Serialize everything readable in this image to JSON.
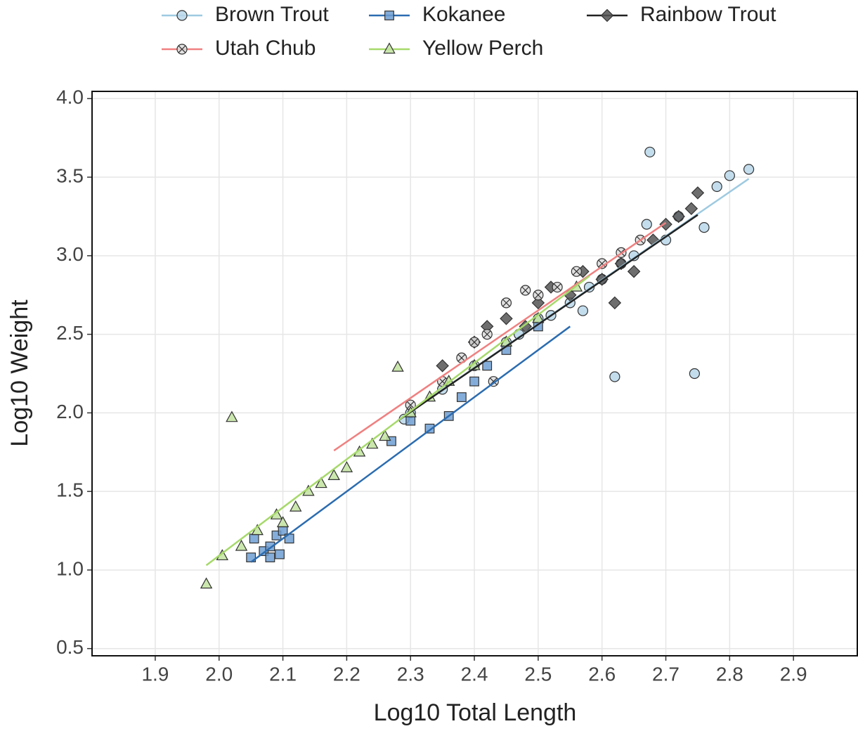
{
  "chart_data": {
    "type": "scatter",
    "xlabel": "Log10 Total Length",
    "ylabel": "Log10 Weight",
    "xlim": [
      1.801,
      3.0
    ],
    "ylim": [
      0.454,
      4.046
    ],
    "xticks": [
      1.9,
      {
        "value": 2.0,
        "label": "2.0"
      },
      2.1,
      2.2,
      2.3,
      2.4,
      2.5,
      2.6,
      2.7,
      2.8,
      2.9
    ],
    "yticks": [
      0.5,
      {
        "value": 1.0,
        "label": "1.0"
      },
      1.5,
      {
        "value": 2.0,
        "label": "2.0"
      },
      2.5,
      {
        "value": 3.0,
        "label": "3.0"
      },
      3.5,
      {
        "value": 4.0,
        "label": "4.0"
      }
    ],
    "grid": true,
    "legend": "top",
    "series": [
      {
        "name": "Brown Trout",
        "color": "#9ecae1",
        "marker": "circle",
        "x": [
          2.3,
          2.35,
          2.4,
          2.45,
          2.5,
          2.52,
          2.55,
          2.58,
          2.6,
          2.62,
          2.63,
          2.65,
          2.67,
          2.675,
          2.7,
          2.72,
          2.745,
          2.76,
          2.78,
          2.8,
          2.83,
          2.29,
          2.47,
          2.57
        ],
        "y": [
          2.0,
          2.15,
          2.3,
          2.45,
          2.6,
          2.62,
          2.7,
          2.8,
          2.85,
          2.23,
          2.95,
          3.0,
          3.2,
          3.66,
          3.1,
          3.25,
          2.25,
          3.18,
          3.44,
          3.51,
          3.55,
          1.96,
          2.5,
          2.65
        ],
        "fit": {
          "x": [
            2.28,
            2.83
          ],
          "y": [
            1.95,
            3.49
          ]
        }
      },
      {
        "name": "Kokanee",
        "color": "#2b6cb0",
        "marker": "square",
        "x": [
          2.05,
          2.055,
          2.07,
          2.08,
          2.09,
          2.1,
          2.11,
          2.27,
          2.3,
          2.33,
          2.36,
          2.38,
          2.4,
          2.42,
          2.45,
          2.5,
          2.08,
          2.095
        ],
        "y": [
          1.08,
          1.2,
          1.12,
          1.15,
          1.22,
          1.25,
          1.2,
          1.82,
          1.95,
          1.9,
          1.98,
          2.1,
          2.2,
          2.3,
          2.4,
          2.55,
          1.08,
          1.1
        ],
        "fit": {
          "x": [
            2.05,
            2.55
          ],
          "y": [
            1.05,
            2.55
          ]
        }
      },
      {
        "name": "Rainbow Trout",
        "color": "#222222",
        "marker": "diamond",
        "x": [
          2.35,
          2.4,
          2.42,
          2.45,
          2.48,
          2.5,
          2.52,
          2.55,
          2.57,
          2.6,
          2.63,
          2.65,
          2.68,
          2.7,
          2.72,
          2.74,
          2.75,
          2.62
        ],
        "y": [
          2.3,
          2.45,
          2.55,
          2.6,
          2.55,
          2.7,
          2.8,
          2.75,
          2.9,
          2.85,
          2.95,
          2.9,
          3.1,
          3.2,
          3.25,
          3.3,
          3.4,
          2.7
        ],
        "fit": {
          "x": [
            2.28,
            2.75
          ],
          "y": [
            1.95,
            3.26
          ]
        }
      },
      {
        "name": "Utah Chub",
        "color": "#f08080",
        "marker": "crosscircle",
        "x": [
          2.3,
          2.35,
          2.38,
          2.42,
          2.43,
          2.45,
          2.48,
          2.5,
          2.53,
          2.56,
          2.6,
          2.63,
          2.66,
          2.4
        ],
        "y": [
          2.05,
          2.2,
          2.35,
          2.5,
          2.2,
          2.7,
          2.78,
          2.75,
          2.8,
          2.9,
          2.95,
          3.02,
          3.1,
          2.45
        ],
        "fit": {
          "x": [
            2.18,
            2.7
          ],
          "y": [
            1.76,
            3.21
          ]
        }
      },
      {
        "name": "Yellow Perch",
        "color": "#a6d96a",
        "marker": "triangle",
        "x": [
          1.98,
          2.005,
          2.02,
          2.035,
          2.06,
          2.09,
          2.1,
          2.12,
          2.14,
          2.16,
          2.18,
          2.2,
          2.22,
          2.24,
          2.26,
          2.28,
          2.3,
          2.33,
          2.36,
          2.4,
          2.45,
          2.5,
          2.56
        ],
        "y": [
          0.91,
          1.09,
          1.97,
          1.15,
          1.25,
          1.35,
          1.3,
          1.4,
          1.5,
          1.55,
          1.6,
          1.65,
          1.75,
          1.8,
          1.85,
          2.29,
          2.0,
          2.1,
          2.2,
          2.3,
          2.45,
          2.6,
          2.8
        ],
        "fit": {
          "x": [
            1.98,
            2.58
          ],
          "y": [
            1.03,
            2.87
          ]
        }
      }
    ]
  }
}
